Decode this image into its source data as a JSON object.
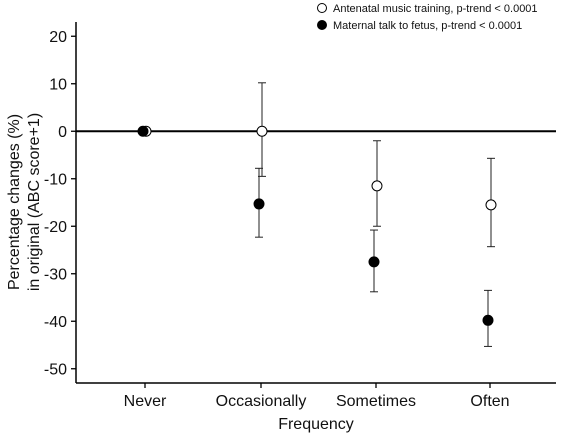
{
  "chart_data": {
    "type": "scatter",
    "title": "",
    "xlabel": "Frequency",
    "ylabel_line1": "Percentage changes (%)",
    "ylabel_line2": "in original (ABC score+1)",
    "ylim": [
      -53,
      23
    ],
    "categories": [
      "Never",
      "Occasionally",
      "Sometimes",
      "Often"
    ],
    "yticks": [
      20,
      10,
      0,
      -10,
      -20,
      -30,
      -40,
      -50
    ],
    "ytick_labels": [
      "20",
      "10",
      "0",
      "-10",
      "-20",
      "-30",
      "-40",
      "-50"
    ],
    "reference_line": 0,
    "grid": false,
    "legend_position": "top-right",
    "series": [
      {
        "name": "Antenatal music training, p-trend < 0.0001",
        "marker": "open-circle",
        "color": "#000000",
        "values": [
          0,
          0,
          -11.5,
          -15.5
        ],
        "lower": [
          null,
          -9.5,
          -20,
          -24.3
        ],
        "upper": [
          null,
          10.2,
          -2,
          -5.7
        ]
      },
      {
        "name": "Maternal talk to fetus, p-trend < 0.0001",
        "marker": "filled-circle",
        "color": "#000000",
        "values": [
          0,
          -15.3,
          -27.5,
          -39.8
        ],
        "lower": [
          null,
          -22.3,
          -33.8,
          -45.3
        ],
        "upper": [
          null,
          -7.8,
          -20.8,
          -33.5
        ]
      }
    ]
  }
}
